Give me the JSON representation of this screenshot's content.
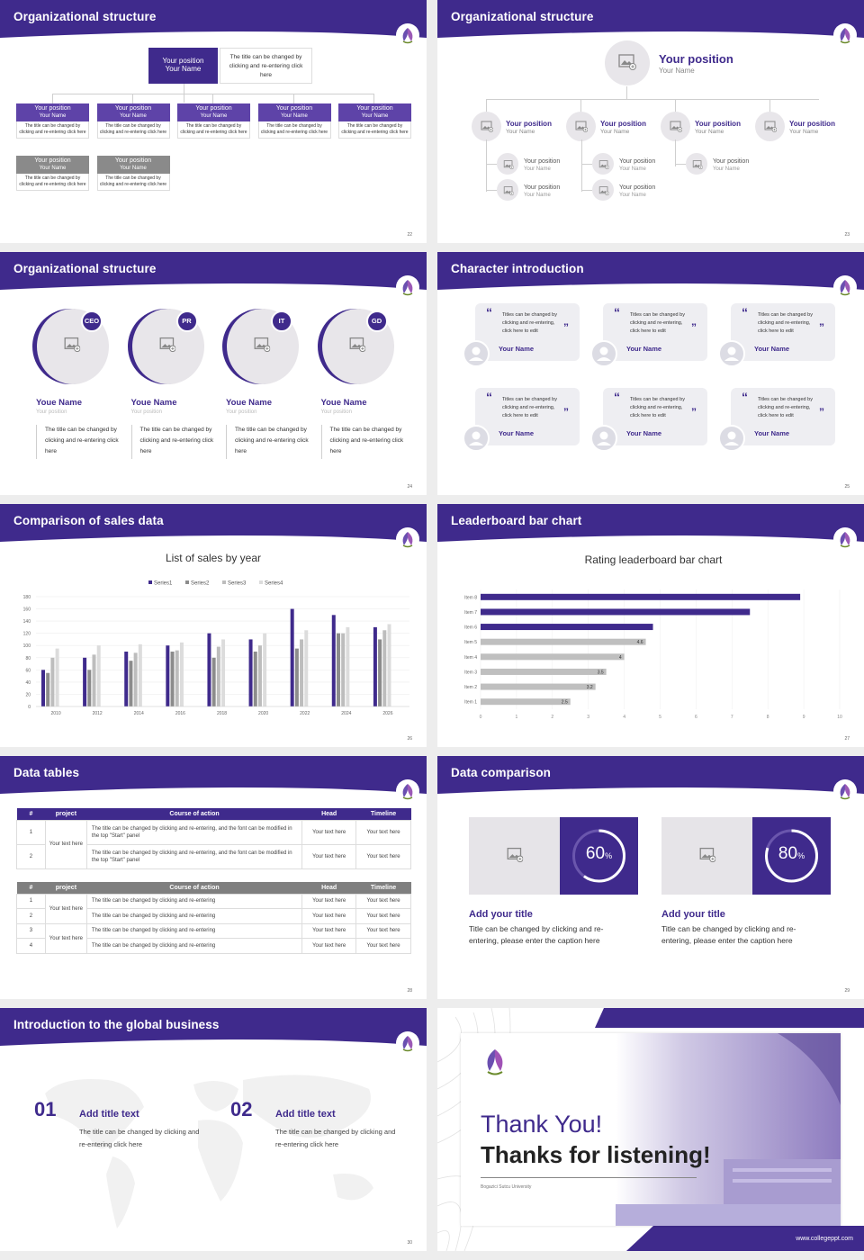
{
  "slides": {
    "s22": {
      "title": "Organizational structure",
      "page": "22",
      "top": {
        "pos": "Your position",
        "name": "Your Name",
        "desc": "The title can be changed by clicking and re-entering click here"
      },
      "row1": [
        {
          "pos": "Your position",
          "name": "Your Name",
          "desc": "The title can be changed by clicking and re-entering click here"
        },
        {
          "pos": "Your position",
          "name": "Your Name",
          "desc": "The title can be changed by clicking and re-entering click here"
        },
        {
          "pos": "Your position",
          "name": "Your Name",
          "desc": "The title can be changed by clicking and re-entering click here"
        },
        {
          "pos": "Your position",
          "name": "Your Name",
          "desc": "The title can be changed by clicking and re-entering click here"
        },
        {
          "pos": "Your position",
          "name": "Your Name",
          "desc": "The title can be changed by clicking and re-entering click here"
        }
      ],
      "row2": [
        {
          "pos": "Your position",
          "name": "Your Name",
          "desc": "The title can be changed by clicking and re-entering click here"
        },
        {
          "pos": "Your position",
          "name": "Your Name",
          "desc": "The title can be changed by clicking and re-entering click here"
        }
      ]
    },
    "s23": {
      "title": "Organizational structure",
      "page": "23",
      "top": {
        "pos": "Your position",
        "name": "Your Name"
      },
      "row1": [
        {
          "pos": "Your position",
          "name": "Your Name"
        },
        {
          "pos": "Your position",
          "name": "Your Name"
        },
        {
          "pos": "Your position",
          "name": "Your Name"
        },
        {
          "pos": "Your position",
          "name": "Your Name"
        }
      ],
      "subs": [
        {
          "pos": "Your position",
          "name": "Your Name"
        },
        {
          "pos": "Your position",
          "name": "Your Name"
        },
        {
          "pos": "Your position",
          "name": "Your Name"
        },
        {
          "pos": "Your position",
          "name": "Your Name"
        },
        {
          "pos": "Your position",
          "name": "Your Name"
        }
      ]
    },
    "s24": {
      "title": "Organizational structure",
      "page": "24",
      "people": [
        {
          "badge": "CEO",
          "name": "Youe Name",
          "pos": "Your position",
          "desc": "The title can be changed by clicking and re-entering click here"
        },
        {
          "badge": "PR",
          "name": "Youe Name",
          "pos": "Your position",
          "desc": "The title can be changed by clicking and re-entering click here"
        },
        {
          "badge": "IT",
          "name": "Youe Name",
          "pos": "Your position",
          "desc": "The title can be changed by clicking and re-entering click here"
        },
        {
          "badge": "GD",
          "name": "Youe Name",
          "pos": "Your position",
          "desc": "The title can be changed by clicking and re-entering click here"
        }
      ]
    },
    "s25": {
      "title": "Character introduction",
      "page": "25",
      "cards": [
        {
          "text": "Titles can be changed by clicking and re-entering, click here to edit",
          "name": "Your Name"
        },
        {
          "text": "Titles can be changed by clicking and re-entering, click here to edit",
          "name": "Your Name"
        },
        {
          "text": "Titles can be changed by clicking and re-entering, click here to edit",
          "name": "Your Name"
        },
        {
          "text": "Titles can be changed by clicking and re-entering, click here to edit",
          "name": "Your Name"
        },
        {
          "text": "Titles can be changed by clicking and re-entering, click here to edit",
          "name": "Your Name"
        },
        {
          "text": "Titles can be changed by clicking and re-entering, click here to edit",
          "name": "Your Name"
        }
      ]
    },
    "s26": {
      "title": "Comparison of sales data",
      "page": "26"
    },
    "s27": {
      "title": "Leaderboard bar chart",
      "page": "27"
    },
    "s28": {
      "title": "Data tables",
      "page": "28",
      "t1": {
        "headers": [
          "#",
          "project",
          "Course of action",
          "Head",
          "Timeline"
        ],
        "group": "Your text here",
        "rows": [
          {
            "n": "1",
            "action": "The title can be changed by clicking and re-entering, and the font can be modified in the top \"Start\" panel",
            "head": "Your text here",
            "time": "Your text here"
          },
          {
            "n": "2",
            "action": "The title can be changed by clicking and re-entering, and the font can be modified in the top \"Start\" panel",
            "head": "Your text here",
            "time": "Your text here"
          }
        ]
      },
      "t2": {
        "headers": [
          "#",
          "project",
          "Course of action",
          "Head",
          "Timeline"
        ],
        "groups": [
          "Your text here",
          "Your text here"
        ],
        "rows": [
          {
            "n": "1",
            "action": "The title can be changed by clicking and re-entering",
            "head": "Your text here",
            "time": "Your text here"
          },
          {
            "n": "2",
            "action": "The title can be changed by clicking and re-entering",
            "head": "Your text here",
            "time": "Your text here"
          },
          {
            "n": "3",
            "action": "The title can be changed by clicking and re-entering",
            "head": "Your text here",
            "time": "Your text here"
          },
          {
            "n": "4",
            "action": "The title can be changed by clicking and re-entering",
            "head": "Your text here",
            "time": "Your text here"
          }
        ]
      }
    },
    "s29": {
      "title": "Data comparison",
      "page": "29",
      "items": [
        {
          "pct": "60",
          "unit": "%",
          "title": "Add your title",
          "desc": "Title can be changed by clicking and re-entering, please enter the caption here"
        },
        {
          "pct": "80",
          "unit": "%",
          "title": "Add your title",
          "desc": "Title can be changed by clicking and re-entering, please enter the caption here"
        }
      ]
    },
    "s30": {
      "title": "Introduction to the global business",
      "page": "30",
      "items": [
        {
          "num": "01",
          "title": "Add title text",
          "desc": "The title can be changed by clicking and re-entering click here"
        },
        {
          "num": "02",
          "title": "Add title text",
          "desc": "The title can be changed by clicking and re-entering click here"
        }
      ]
    },
    "s31": {
      "line1": "Thank You!",
      "line2": "Thanks for listening!",
      "university": "Bogazici Sutcu University",
      "site": "www.collegeppt.com"
    }
  },
  "chart_data": [
    {
      "type": "bar",
      "title": "List of sales by year",
      "categories": [
        "2010",
        "2012",
        "2014",
        "2016",
        "2018",
        "2020",
        "2022",
        "2024",
        "2026"
      ],
      "series": [
        {
          "name": "Series1",
          "values": [
            60,
            80,
            90,
            100,
            120,
            110,
            160,
            150,
            130
          ]
        },
        {
          "name": "Series2",
          "values": [
            55,
            60,
            75,
            90,
            80,
            90,
            95,
            120,
            110
          ]
        },
        {
          "name": "Series3",
          "values": [
            80,
            85,
            88,
            92,
            98,
            100,
            110,
            120,
            125
          ]
        },
        {
          "name": "Series4",
          "values": [
            95,
            100,
            102,
            105,
            110,
            120,
            125,
            130,
            135
          ]
        }
      ],
      "ylim": [
        0,
        180
      ],
      "yticks": [
        "0",
        "20",
        "40",
        "60",
        "80",
        "100",
        "120",
        "140",
        "160",
        "180"
      ],
      "colors": [
        "#3f2a8c",
        "#8c8c8c",
        "#bdbdbd",
        "#dcdcdc"
      ]
    },
    {
      "type": "bar",
      "orientation": "horizontal",
      "title": "Rating leaderboard bar chart",
      "categories": [
        "Item 8",
        "Item 7",
        "Item 6",
        "Item 5",
        "Item 4",
        "Item 3",
        "Item 2",
        "Item 1"
      ],
      "values": [
        8.9,
        7.5,
        4.8,
        4.6,
        4,
        3.5,
        3.2,
        2.5
      ],
      "labels": [
        "",
        "",
        "",
        "4.6",
        "4",
        "3.5",
        "3.2",
        "2.5"
      ],
      "xlim": [
        0,
        10
      ],
      "xticks": [
        "0",
        "1",
        "2",
        "3",
        "4",
        "5",
        "6",
        "7",
        "8",
        "9",
        "10"
      ],
      "colors": [
        "#3f2a8c",
        "#bfbfbf"
      ]
    }
  ]
}
